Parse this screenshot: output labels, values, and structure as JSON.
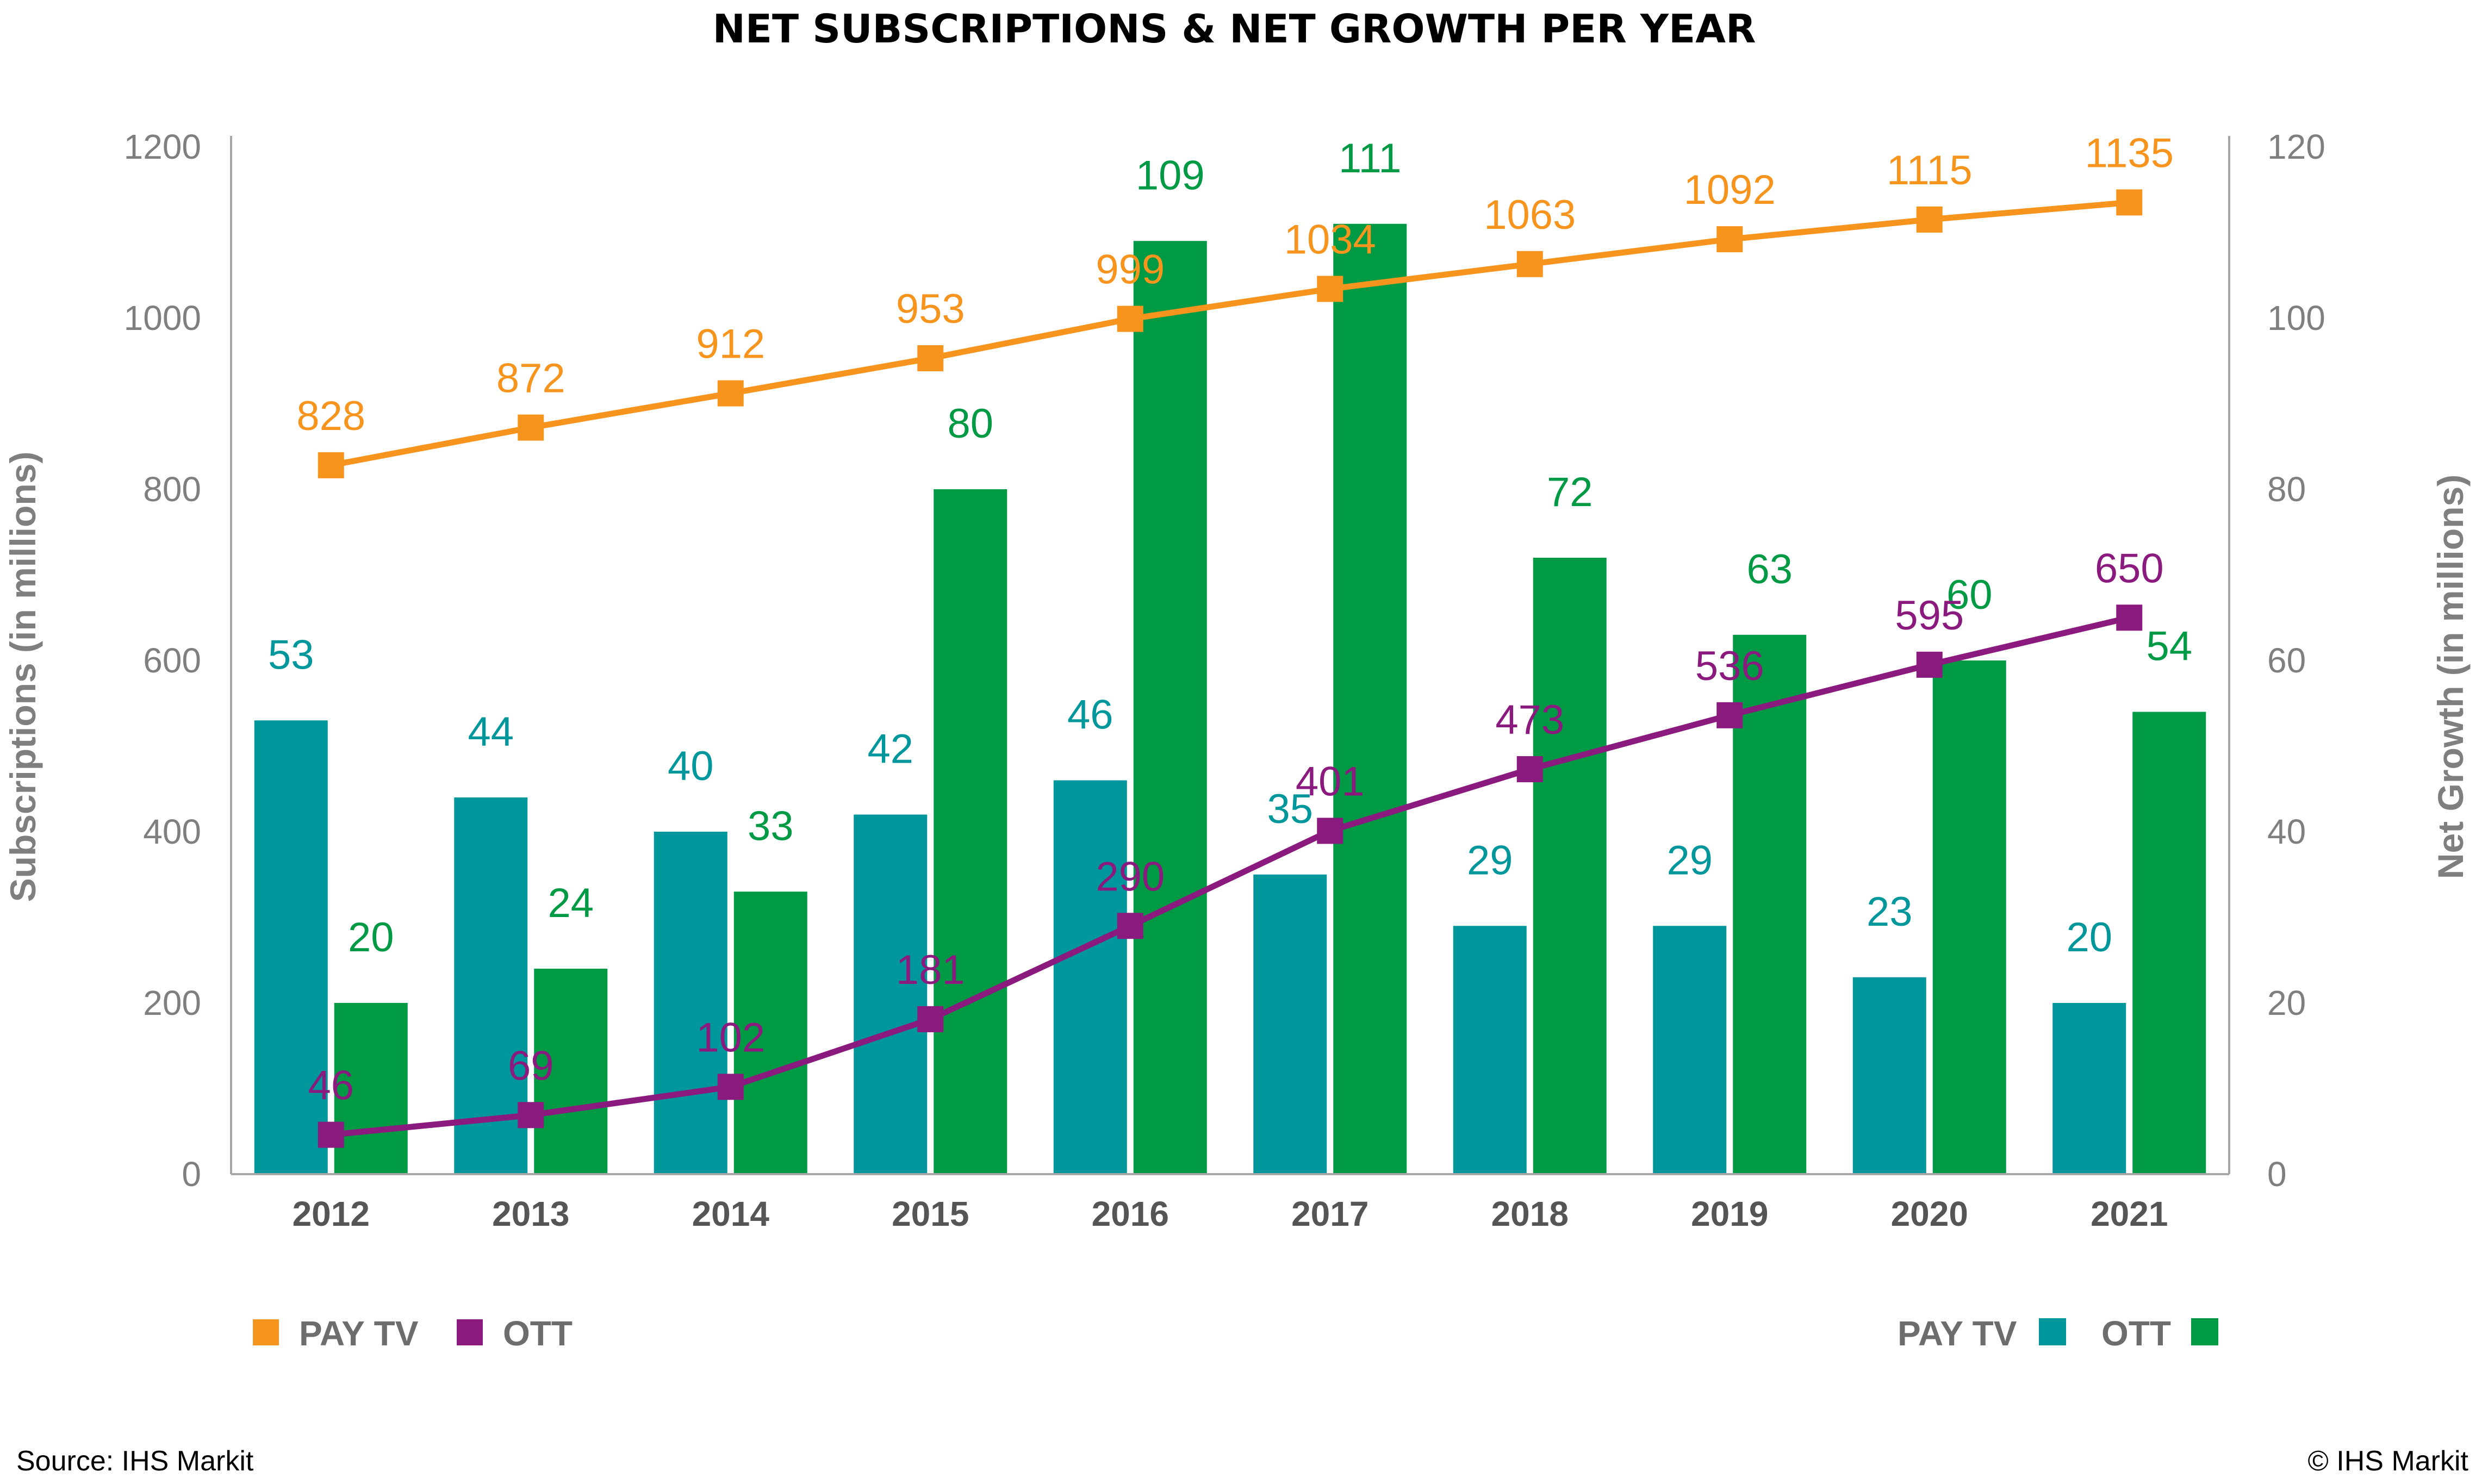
{
  "chart_data": {
    "type": "bar",
    "title": "NET SUBSCRIPTIONS & NET GROWTH PER YEAR",
    "categories": [
      "2012",
      "2013",
      "2014",
      "2015",
      "2016",
      "2017",
      "2018",
      "2019",
      "2020",
      "2021"
    ],
    "left_axis": {
      "label": "Subscriptions (in millions)",
      "range": [
        0,
        1200
      ],
      "ticks": [
        0,
        200,
        400,
        600,
        800,
        1000,
        1200
      ]
    },
    "right_axis": {
      "label": "Net Growth (in millions)",
      "range": [
        0,
        120
      ],
      "ticks": [
        0,
        20,
        40,
        60,
        80,
        100,
        120
      ]
    },
    "line_series": [
      {
        "name": "PAY TV",
        "color": "#f7941d",
        "axis": "left",
        "values": [
          828,
          872,
          912,
          953,
          999,
          1034,
          1063,
          1092,
          1115,
          1135
        ]
      },
      {
        "name": "OTT",
        "color": "#8b1a7f",
        "axis": "left",
        "values": [
          46,
          69,
          102,
          181,
          290,
          401,
          473,
          536,
          595,
          650
        ]
      }
    ],
    "bar_series": [
      {
        "name": "PAY TV",
        "color": "#00979c",
        "label_color": "#00979c",
        "axis": "right",
        "values": [
          53,
          44,
          40,
          42,
          46,
          35,
          29,
          29,
          23,
          20
        ]
      },
      {
        "name": "OTT",
        "color": "#009a44",
        "label_color": "#009a44",
        "axis": "right",
        "values": [
          20,
          24,
          33,
          80,
          109,
          111,
          72,
          63,
          60,
          54
        ]
      }
    ],
    "legend": {
      "lines": "bottom-left",
      "bars": "bottom-right"
    },
    "grid": false
  },
  "footer": {
    "source": "Source: IHS Markit",
    "copyright": "© IHS Markit"
  }
}
